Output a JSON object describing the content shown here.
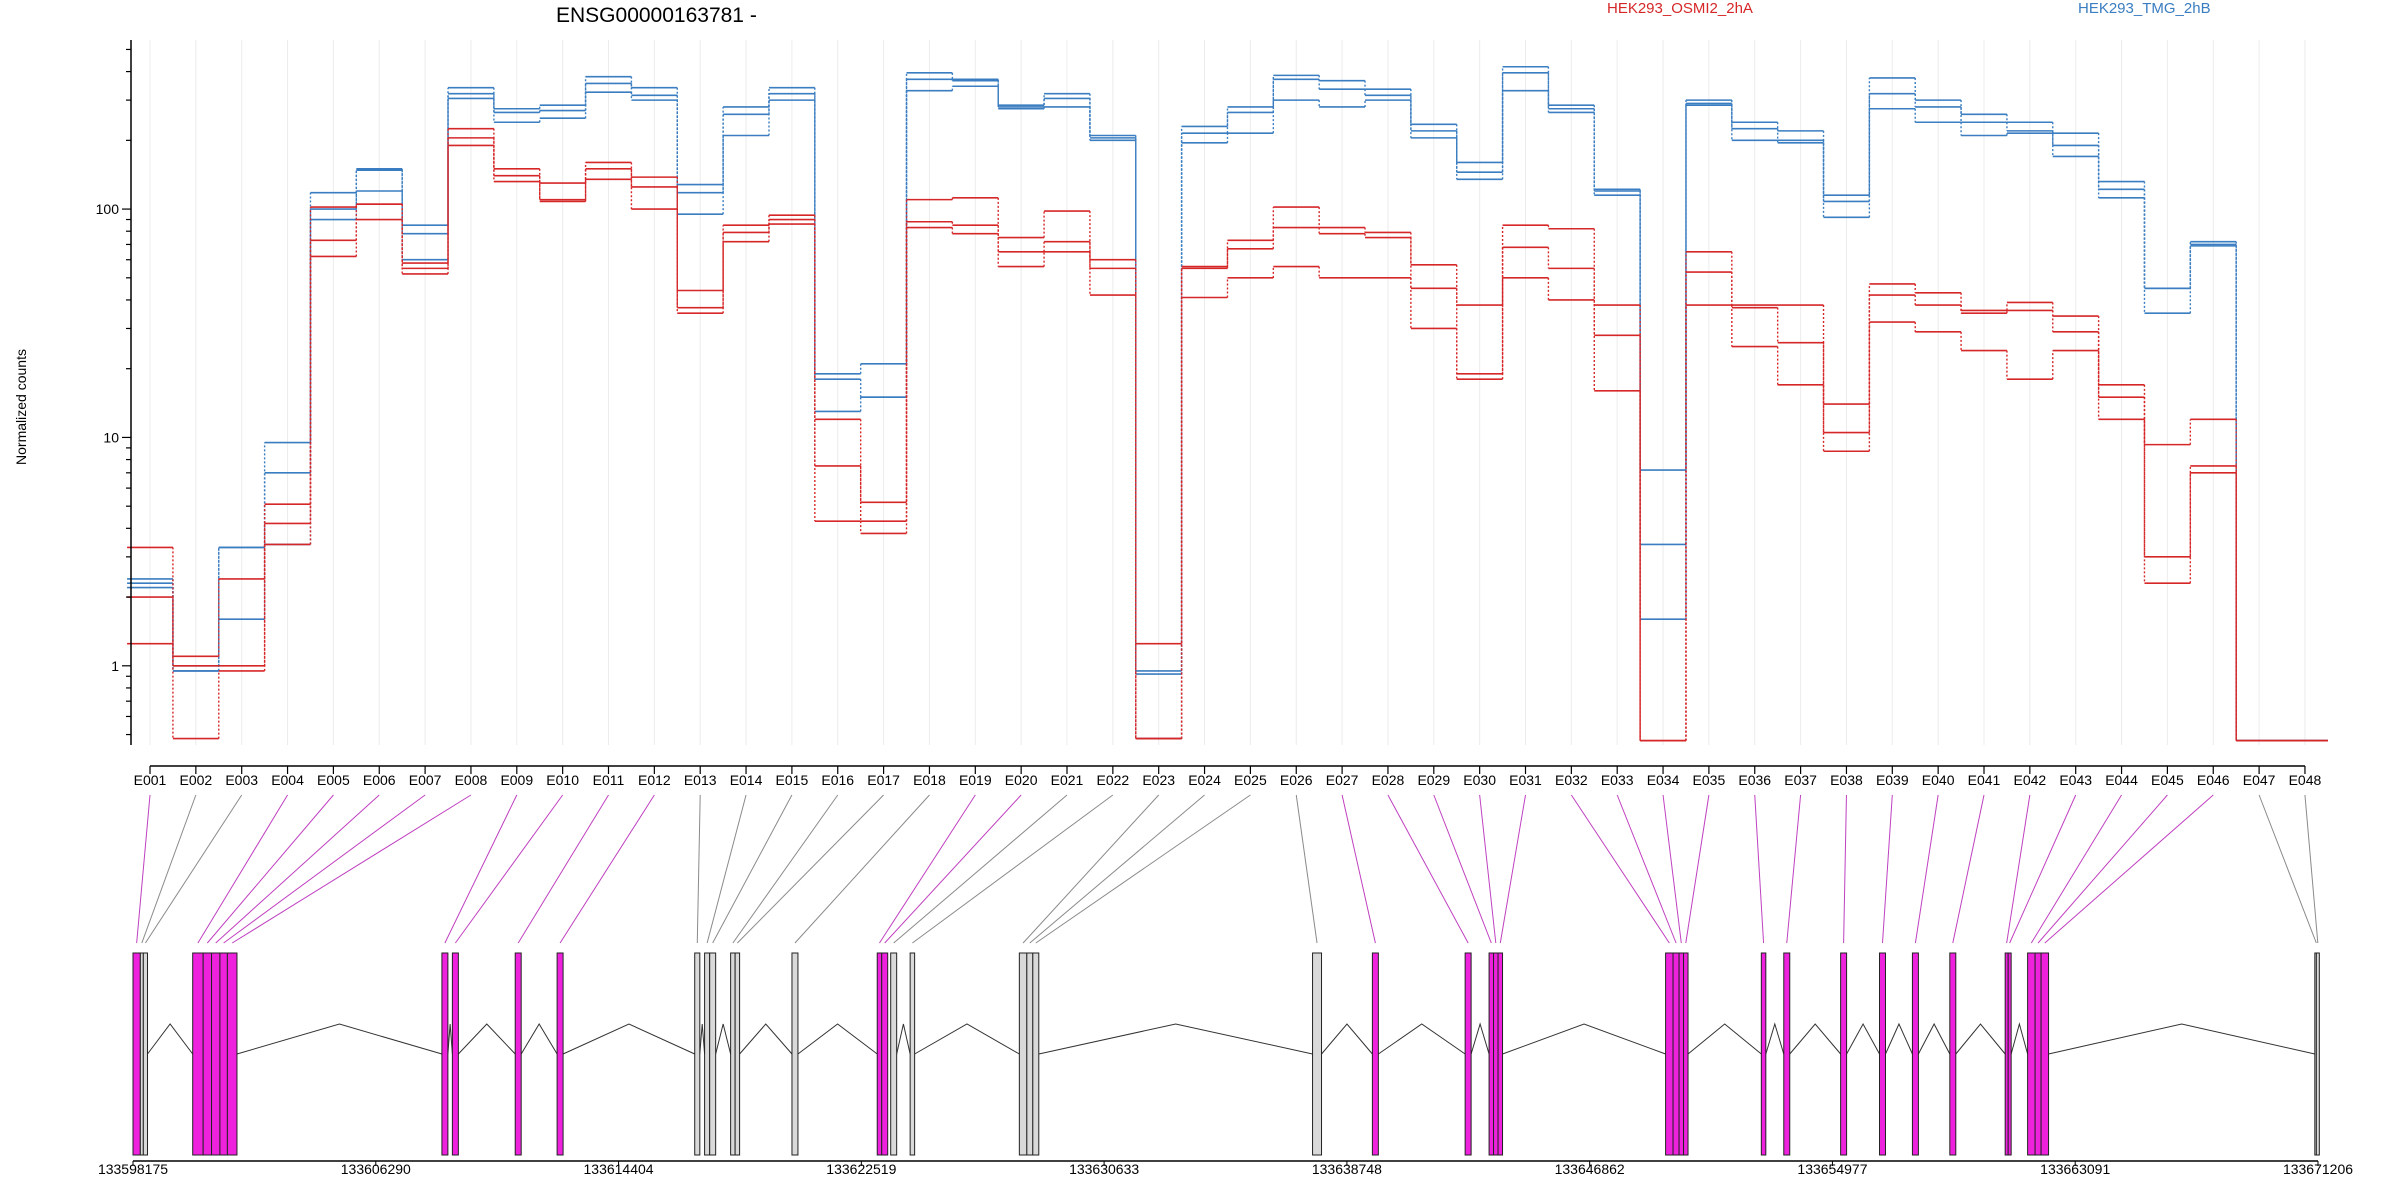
{
  "chart_data": {
    "type": "line",
    "title": "ENSG00000163781 -",
    "ylabel": "Normalized counts",
    "y_scale": "log",
    "ylim": [
      0.45,
      550
    ],
    "yticks": [
      "1",
      "10",
      "100"
    ],
    "grid": "vertical lines at exon positions",
    "legend": [
      {
        "label": "HEK293_OSMI2_2hA",
        "color": "#d62728"
      },
      {
        "label": "HEK293_TMG_2hB",
        "color": "#3a7dc0"
      }
    ],
    "categories": [
      "E001",
      "E002",
      "E003",
      "E004",
      "E005",
      "E006",
      "E007",
      "E008",
      "E009",
      "E010",
      "E011",
      "E012",
      "E013",
      "E014",
      "E015",
      "E016",
      "E017",
      "E018",
      "E019",
      "E020",
      "E021",
      "E022",
      "E023",
      "E024",
      "E025",
      "E026",
      "E027",
      "E028",
      "E029",
      "E030",
      "E031",
      "E032",
      "E033",
      "E034",
      "E035",
      "E036",
      "E037",
      "E038",
      "E039",
      "E040",
      "E041",
      "E042",
      "E043",
      "E044",
      "E045",
      "E046",
      "E047",
      "E048"
    ],
    "series": [
      {
        "group": "HEK293_TMG_2hB",
        "color": "#3a7dc0",
        "values": [
          2.3,
          1.0,
          3.3,
          9.5,
          118,
          150,
          85,
          340,
          275,
          285,
          380,
          340,
          128,
          280,
          340,
          19,
          21,
          395,
          370,
          285,
          320,
          210,
          0.95,
          230,
          280,
          385,
          365,
          335,
          235,
          160,
          420,
          285,
          122,
          7.2,
          300,
          240,
          220,
          115,
          375,
          300,
          260,
          240,
          215,
          132,
          45,
          72,
          0.47,
          0.47
        ]
      },
      {
        "group": "HEK293_TMG_2hB",
        "color": "#3a7dc0",
        "values": [
          2.2,
          0.95,
          3.3,
          7.0,
          100,
          148,
          78,
          320,
          265,
          270,
          355,
          315,
          118,
          260,
          320,
          18,
          15,
          370,
          365,
          275,
          305,
          205,
          0.92,
          215,
          265,
          370,
          335,
          315,
          220,
          145,
          395,
          275,
          120,
          3.4,
          290,
          225,
          200,
          108,
          320,
          280,
          240,
          220,
          190,
          122,
          45,
          70,
          0.47,
          0.47
        ]
      },
      {
        "group": "HEK293_TMG_2hB",
        "color": "#3a7dc0",
        "values": [
          2.4,
          0.95,
          1.6,
          3.4,
          90,
          120,
          60,
          305,
          240,
          250,
          325,
          300,
          95,
          210,
          300,
          13,
          15,
          330,
          345,
          280,
          280,
          200,
          0.48,
          195,
          215,
          300,
          280,
          300,
          205,
          135,
          330,
          265,
          115,
          1.6,
          285,
          200,
          195,
          92,
          275,
          240,
          210,
          215,
          170,
          112,
          35,
          69,
          0.47,
          0.47
        ]
      },
      {
        "group": "HEK293_OSMI2_2hA",
        "color": "#d62728",
        "values": [
          3.3,
          1.1,
          2.4,
          5.1,
          102,
          105,
          58,
          225,
          150,
          130,
          160,
          138,
          44,
          85,
          94,
          12,
          5.2,
          110,
          112,
          75,
          98,
          60,
          1.25,
          55,
          73,
          102,
          83,
          79,
          57,
          38,
          85,
          82,
          38,
          0.47,
          65,
          38,
          38,
          14,
          47,
          43,
          36,
          39,
          34,
          17,
          9.3,
          12,
          0.47,
          0.47
        ]
      },
      {
        "group": "HEK293_OSMI2_2hA",
        "color": "#d62728",
        "values": [
          2.0,
          1.0,
          1.0,
          4.2,
          73,
          105,
          55,
          205,
          140,
          110,
          150,
          125,
          37,
          79,
          90,
          7.5,
          4.3,
          88,
          85,
          65,
          72,
          55,
          0.48,
          56,
          67,
          83,
          78,
          75,
          45,
          19,
          68,
          55,
          28,
          0.47,
          53,
          37,
          26,
          10.5,
          42,
          38,
          35,
          36,
          29,
          15,
          3.0,
          7.5,
          0.47,
          0.47
        ]
      },
      {
        "group": "HEK293_OSMI2_2hA",
        "color": "#d62728",
        "values": [
          1.25,
          0.48,
          0.95,
          3.4,
          62,
          90,
          52,
          190,
          132,
          108,
          135,
          100,
          35,
          72,
          86,
          4.3,
          3.8,
          83,
          78,
          56,
          65,
          42,
          0.48,
          41,
          50,
          56,
          50,
          50,
          30,
          18,
          50,
          40,
          16,
          0.47,
          38,
          25,
          17,
          8.7,
          32,
          29,
          24,
          18,
          24,
          12,
          2.3,
          7.0,
          0.47,
          0.47
        ]
      }
    ],
    "genomic_ticks": [
      "133598175",
      "133606290",
      "133614404",
      "133622519",
      "133630633",
      "133638748",
      "133646862",
      "133654977",
      "133663091",
      "133671206"
    ],
    "genomic_range": [
      133598175,
      133671206
    ],
    "exons": [
      {
        "id": "E001",
        "start": 133598175,
        "end": 133598420,
        "highlight": true
      },
      {
        "id": "E002",
        "start": 133598420,
        "end": 133598520,
        "highlight": false
      },
      {
        "id": "E003",
        "start": 133598520,
        "end": 133598660,
        "highlight": false
      },
      {
        "id": "E004",
        "start": 133600170,
        "end": 133600520,
        "highlight": true
      },
      {
        "id": "E005",
        "start": 133600520,
        "end": 133600800,
        "highlight": true
      },
      {
        "id": "E006",
        "start": 133600800,
        "end": 133601080,
        "highlight": true
      },
      {
        "id": "E007",
        "start": 133601080,
        "end": 133601330,
        "highlight": true
      },
      {
        "id": "E008",
        "start": 133601330,
        "end": 133601650,
        "highlight": true
      },
      {
        "id": "E009",
        "start": 133608500,
        "end": 133608700,
        "highlight": true
      },
      {
        "id": "E010",
        "start": 133608850,
        "end": 133609050,
        "highlight": true
      },
      {
        "id": "E011",
        "start": 133610950,
        "end": 133611150,
        "highlight": true
      },
      {
        "id": "E012",
        "start": 133612350,
        "end": 133612550,
        "highlight": true
      },
      {
        "id": "E013",
        "start": 133616950,
        "end": 133617120,
        "highlight": false
      },
      {
        "id": "E014",
        "start": 133617280,
        "end": 133617450,
        "highlight": false
      },
      {
        "id": "E015",
        "start": 133617450,
        "end": 133617650,
        "highlight": false
      },
      {
        "id": "E016",
        "start": 133618150,
        "end": 133618300,
        "highlight": false
      },
      {
        "id": "E017",
        "start": 133618300,
        "end": 133618450,
        "highlight": false
      },
      {
        "id": "E018",
        "start": 133620200,
        "end": 133620400,
        "highlight": false
      },
      {
        "id": "E019",
        "start": 133623050,
        "end": 133623200,
        "highlight": true
      },
      {
        "id": "E020",
        "start": 133623200,
        "end": 133623400,
        "highlight": true
      },
      {
        "id": "E021",
        "start": 133623500,
        "end": 133623700,
        "highlight": false
      },
      {
        "id": "E022",
        "start": 133624150,
        "end": 133624300,
        "highlight": false
      },
      {
        "id": "E023",
        "start": 133627800,
        "end": 133628050,
        "highlight": false
      },
      {
        "id": "E024",
        "start": 133628050,
        "end": 133628250,
        "highlight": false
      },
      {
        "id": "E025",
        "start": 133628250,
        "end": 133628450,
        "highlight": false
      },
      {
        "id": "E026",
        "start": 133637600,
        "end": 133637900,
        "highlight": false
      },
      {
        "id": "E027",
        "start": 133639600,
        "end": 133639800,
        "highlight": true
      },
      {
        "id": "E028",
        "start": 133642700,
        "end": 133642900,
        "highlight": true
      },
      {
        "id": "E029",
        "start": 133643500,
        "end": 133643650,
        "highlight": true
      },
      {
        "id": "E030",
        "start": 133643650,
        "end": 133643800,
        "highlight": true
      },
      {
        "id": "E031",
        "start": 133643800,
        "end": 133643950,
        "highlight": true
      },
      {
        "id": "E032",
        "start": 133649400,
        "end": 133649650,
        "highlight": true
      },
      {
        "id": "E033",
        "start": 133649650,
        "end": 133649850,
        "highlight": true
      },
      {
        "id": "E034",
        "start": 133649850,
        "end": 133650000,
        "highlight": true
      },
      {
        "id": "E035",
        "start": 133650000,
        "end": 133650150,
        "highlight": true
      },
      {
        "id": "E036",
        "start": 133652600,
        "end": 133652750,
        "highlight": true
      },
      {
        "id": "E037",
        "start": 133653350,
        "end": 133653550,
        "highlight": true
      },
      {
        "id": "E038",
        "start": 133655250,
        "end": 133655450,
        "highlight": true
      },
      {
        "id": "E039",
        "start": 133656550,
        "end": 133656750,
        "highlight": true
      },
      {
        "id": "E040",
        "start": 133657650,
        "end": 133657850,
        "highlight": true
      },
      {
        "id": "E041",
        "start": 133658900,
        "end": 133659100,
        "highlight": true
      },
      {
        "id": "E042",
        "start": 133660750,
        "end": 133660850,
        "highlight": true
      },
      {
        "id": "E043",
        "start": 133660850,
        "end": 133660950,
        "highlight": true
      },
      {
        "id": "E044",
        "start": 133661500,
        "end": 133661750,
        "highlight": true
      },
      {
        "id": "E045",
        "start": 133661750,
        "end": 133661950,
        "highlight": true
      },
      {
        "id": "E046",
        "start": 133661950,
        "end": 133662200,
        "highlight": true
      },
      {
        "id": "E047",
        "start": 133671100,
        "end": 133671150,
        "highlight": false
      },
      {
        "id": "E048",
        "start": 133671150,
        "end": 133671206,
        "highlight": false
      }
    ]
  }
}
